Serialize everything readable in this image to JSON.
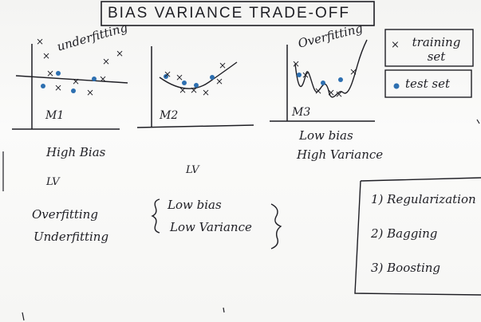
{
  "board": {
    "title": "BIAS VARIANCE TRADE-OFF",
    "plots": [
      {
        "annotation": "underfitting",
        "model": "M1"
      },
      {
        "annotation": "",
        "model": "M2"
      },
      {
        "annotation": "Overfitting",
        "model": "M3"
      }
    ],
    "legend": {
      "training_set": "training set",
      "test_set": "test set",
      "cross_marker": "×"
    },
    "notes": {
      "m1_bias": "High Bias",
      "m1_variance": "LV",
      "m2_variance": "LV",
      "m3_bias": "Low bias",
      "m3_variance": "High Variance",
      "overfitting": "Overfitting",
      "underfitting": "Underfitting",
      "ideal_bias": "Low bias",
      "ideal_variance": "Low Variance"
    },
    "remedies": [
      "1) Regularization",
      "2) Bagging",
      "3) Boosting"
    ],
    "colors": {
      "ink": "#1e1e24",
      "marker": "#2d6fb0"
    }
  }
}
